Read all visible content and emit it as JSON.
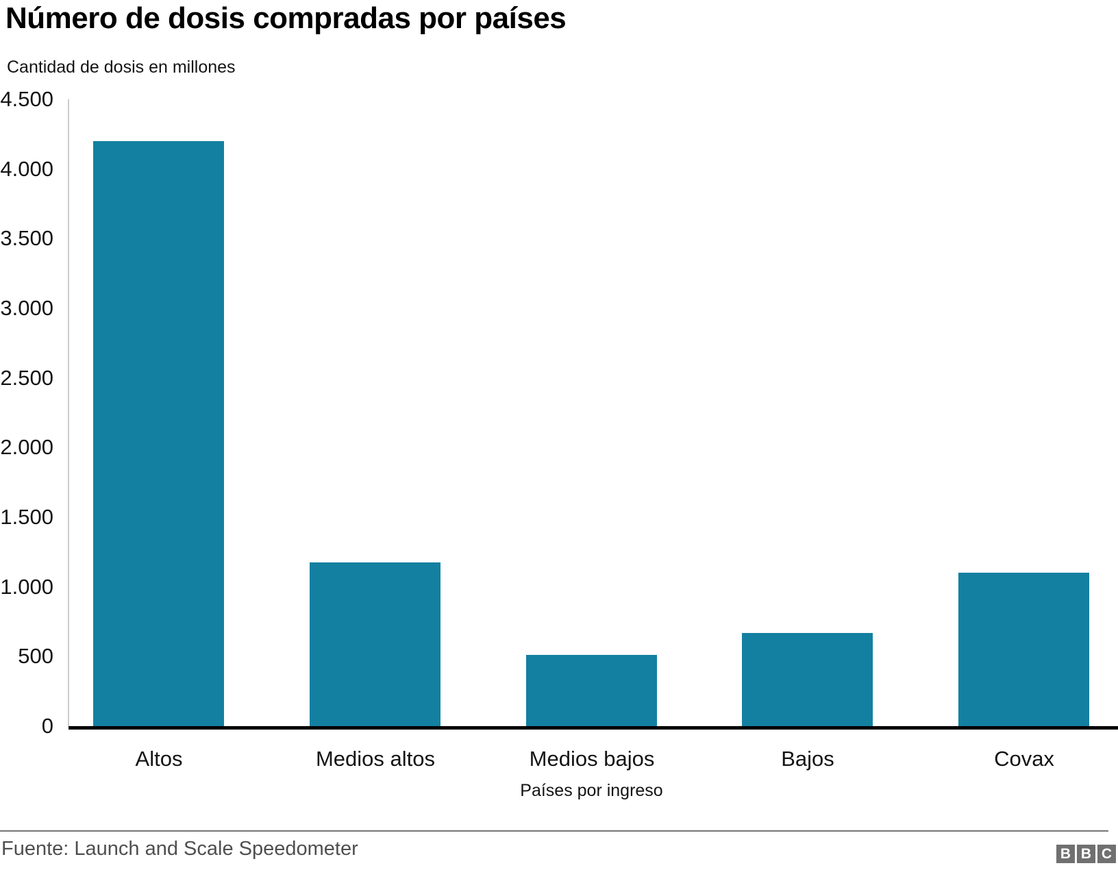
{
  "header": {
    "title": "Número de dosis compradas por países",
    "subtitle": "Cantidad de dosis en millones"
  },
  "chart_data": {
    "type": "bar",
    "title": "Número de dosis compradas por países",
    "subtitle": "Cantidad de dosis en millones",
    "categories": [
      "Altos",
      "Medios altos",
      "Medios bajos",
      "Bajos",
      "Covax"
    ],
    "values": [
      4200,
      1175,
      510,
      670,
      1100
    ],
    "xlabel": "Países por ingreso",
    "ylabel": "Cantidad de dosis en millones",
    "ylim": [
      0,
      4500
    ],
    "ytick_step": 500,
    "ytick_labels": [
      "0",
      "500",
      "1.000",
      "1.500",
      "2.000",
      "2.500",
      "3.000",
      "3.500",
      "4.000",
      "4.500"
    ],
    "grid": false,
    "legend_position": "none",
    "bar_color": "#1380A1"
  },
  "footer": {
    "source": "Fuente: Launch and Scale Speedometer",
    "logo_letters": [
      "B",
      "B",
      "C"
    ]
  },
  "colors": {
    "bar": "#1380A1",
    "axis_line": "#cccccc",
    "baseline": "#000000",
    "text": "#141414",
    "footer_text": "#4f4f4f",
    "footer_rule": "#767676",
    "logo_bg": "#707070"
  }
}
